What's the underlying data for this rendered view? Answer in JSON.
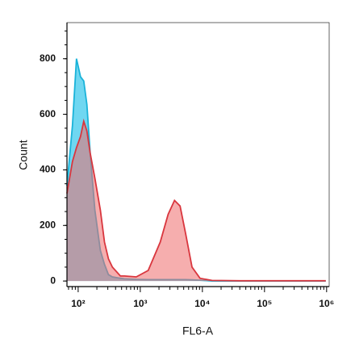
{
  "chart_data": {
    "type": "area",
    "x_label": "FL6-A",
    "y_label": "Count",
    "x": [
      66,
      81,
      94,
      109,
      123,
      138,
      156,
      186,
      228,
      265,
      307,
      356,
      478,
      554,
      863,
      1343,
      2094,
      2810,
      3560,
      4375,
      5380,
      6810,
      9160,
      14260,
      40090,
      970000
    ],
    "series": [
      {
        "color": "#1ab3d9",
        "fill": "#5fd3f0",
        "values": [
          343,
          560,
          800,
          735,
          720,
          635,
          460,
          255,
          110,
          60,
          23,
          15,
          10,
          8,
          6,
          5,
          5,
          5,
          5,
          5,
          5,
          4,
          3,
          0,
          0,
          0
        ]
      },
      {
        "color": "#d9363e",
        "fill": "#ef6b6b",
        "values": [
          315,
          430,
          480,
          520,
          575,
          540,
          460,
          370,
          255,
          140,
          80,
          50,
          18,
          18,
          15,
          38,
          140,
          240,
          290,
          270,
          170,
          50,
          10,
          2,
          1,
          1
        ]
      }
    ],
    "xlog": true,
    "xlim": [
      66,
      1100000
    ],
    "xticks": [
      {
        "value": 100,
        "label": "10²"
      },
      {
        "value": 1000,
        "label": "10³"
      },
      {
        "value": 10000,
        "label": "10⁴"
      },
      {
        "value": 100000,
        "label": "10⁵"
      },
      {
        "value": 1000000,
        "label": "10⁶"
      }
    ],
    "ylim": [
      -20,
      930
    ],
    "yticks": [
      0,
      200,
      400,
      600,
      800
    ]
  }
}
